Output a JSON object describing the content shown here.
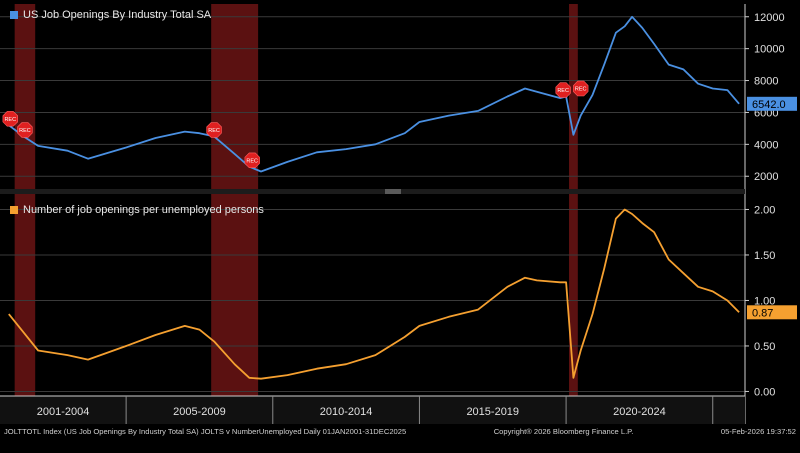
{
  "colors": {
    "background": "#000000",
    "series_top": "#4a90e2",
    "series_bottom": "#f5a030",
    "recession": "#6b1414",
    "grid": "#3a3a3a",
    "axis_text": "#e0e0e0"
  },
  "footer": {
    "left": "JOLTTOTL Index (US Job Openings By Industry Total SA) JOLTS v NumberUnemployed Daily 01JAN2001-31DEC2025",
    "copyright": "Copyright® 2026 Bloomberg Finance L.P.",
    "timestamp": "05-Feb-2026 19:37:52"
  },
  "recession_marker_label": "REC",
  "chart_data": [
    {
      "type": "line",
      "panel": "top",
      "legend": "US Job Openings By Industry Total SA",
      "ylim": [
        1200,
        12800
      ],
      "yticks": [
        2000,
        4000,
        6000,
        8000,
        10000,
        12000
      ],
      "ytick_labels": [
        "2000",
        "4000",
        "6000",
        "8000",
        "10000",
        "12000"
      ],
      "last_value_label": "6542.0",
      "last_value": 6542,
      "grid": true,
      "color": "#4a90e2",
      "x": [
        2001.0,
        2001.5,
        2002.0,
        2003.0,
        2003.7,
        2005.0,
        2006.0,
        2007.0,
        2007.5,
        2008.0,
        2008.7,
        2009.2,
        2009.6,
        2010.5,
        2011.5,
        2012.5,
        2013.5,
        2014.5,
        2015.0,
        2016.0,
        2017.0,
        2018.0,
        2018.6,
        2019.0,
        2019.8,
        2020.0,
        2020.25,
        2020.5,
        2020.9,
        2021.3,
        2021.7,
        2022.0,
        2022.25,
        2022.6,
        2023.0,
        2023.5,
        2024.0,
        2024.5,
        2025.0,
        2025.5,
        2025.9
      ],
      "values": [
        5200,
        4500,
        3900,
        3600,
        3100,
        3800,
        4400,
        4800,
        4700,
        4500,
        3400,
        2600,
        2300,
        2900,
        3500,
        3700,
        4000,
        4700,
        5400,
        5800,
        6100,
        7000,
        7500,
        7300,
        6900,
        7000,
        4600,
        5800,
        7100,
        9000,
        11000,
        11400,
        12000,
        11300,
        10300,
        9000,
        8700,
        7800,
        7500,
        7400,
        6542
      ]
    },
    {
      "type": "line",
      "panel": "bottom",
      "legend": "Number of job openings per unemployed persons",
      "ylim": [
        -0.05,
        2.17
      ],
      "yticks": [
        0.0,
        0.5,
        1.0,
        1.5,
        2.0
      ],
      "ytick_labels": [
        "0.00",
        "0.50",
        "1.00",
        "1.50",
        "2.00"
      ],
      "last_value_label": "0.87",
      "last_value": 0.87,
      "grid": true,
      "color": "#f5a030",
      "x": [
        2001.0,
        2001.5,
        2002.0,
        2003.0,
        2003.7,
        2005.0,
        2006.0,
        2007.0,
        2007.5,
        2008.0,
        2008.7,
        2009.2,
        2009.6,
        2010.5,
        2011.5,
        2012.5,
        2013.5,
        2014.5,
        2015.0,
        2016.0,
        2017.0,
        2018.0,
        2018.6,
        2019.0,
        2019.8,
        2020.0,
        2020.25,
        2020.5,
        2020.9,
        2021.3,
        2021.7,
        2022.0,
        2022.25,
        2022.6,
        2023.0,
        2023.5,
        2024.0,
        2024.5,
        2025.0,
        2025.5,
        2025.9
      ],
      "values": [
        0.85,
        0.65,
        0.45,
        0.4,
        0.35,
        0.5,
        0.62,
        0.72,
        0.68,
        0.55,
        0.3,
        0.15,
        0.14,
        0.18,
        0.25,
        0.3,
        0.4,
        0.6,
        0.72,
        0.82,
        0.9,
        1.15,
        1.25,
        1.22,
        1.2,
        1.2,
        0.15,
        0.45,
        0.85,
        1.35,
        1.9,
        2.0,
        1.95,
        1.85,
        1.75,
        1.45,
        1.3,
        1.15,
        1.1,
        1.0,
        0.87
      ]
    }
  ],
  "x_axis": {
    "range": [
      2000.7,
      2026.1
    ],
    "bands": [
      {
        "label": "2001-2004",
        "from": 2000.7,
        "to": 2005.0
      },
      {
        "label": "2005-2009",
        "from": 2005.0,
        "to": 2010.0
      },
      {
        "label": "2010-2014",
        "from": 2010.0,
        "to": 2015.0
      },
      {
        "label": "2015-2019",
        "from": 2015.0,
        "to": 2020.0
      },
      {
        "label": "2020-2024",
        "from": 2020.0,
        "to": 2025.0
      }
    ]
  },
  "recessions": [
    {
      "from": 2001.2,
      "to": 2001.9
    },
    {
      "from": 2007.9,
      "to": 2009.5
    },
    {
      "from": 2020.1,
      "to": 2020.4
    }
  ],
  "rec_markers": [
    {
      "x": 2001.05,
      "value": 5600
    },
    {
      "x": 2001.55,
      "value": 4900
    },
    {
      "x": 2008.0,
      "value": 4900
    },
    {
      "x": 2009.3,
      "value": 3000
    },
    {
      "x": 2019.9,
      "value": 7400
    },
    {
      "x": 2020.5,
      "value": 7500
    }
  ]
}
